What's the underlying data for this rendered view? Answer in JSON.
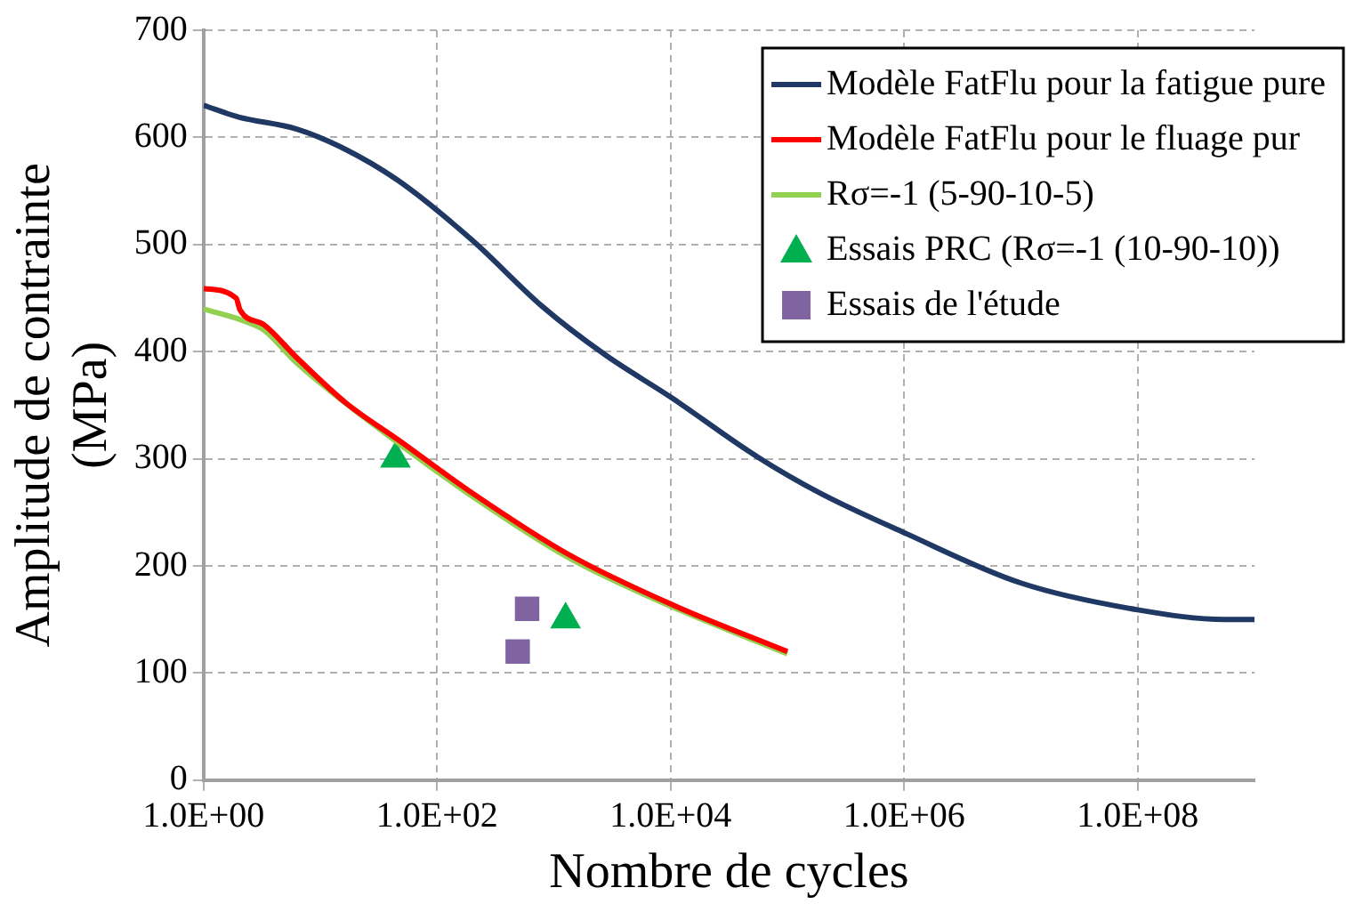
{
  "chart_data": {
    "type": "line",
    "xlabel": "Nombre de cycles",
    "ylabel": "Amplitude de contrainte\n(MPa)",
    "log": "x",
    "grid": true,
    "legend": "top right",
    "xlim": [
      1,
      1000000000
    ],
    "xticks": [
      {
        "value": 1,
        "label": "1.0E+00"
      },
      {
        "value": 100,
        "label": "1.0E+02"
      },
      {
        "value": 10000,
        "label": "1.0E+04"
      },
      {
        "value": 1000000,
        "label": "1.0E+06"
      },
      {
        "value": 100000000,
        "label": "1.0E+08"
      }
    ],
    "ylim": [
      0,
      700
    ],
    "yticks": [
      0,
      100,
      200,
      300,
      400,
      500,
      600,
      700
    ],
    "series": [
      {
        "name": "Modèle FatFlu pour la fatigue pure",
        "color": "#1f3864",
        "marker": "none",
        "x": [
          1,
          2,
          6.2,
          15,
          46,
          200,
          800,
          2750,
          10200,
          55000,
          190000,
          1000000,
          10000000,
          100000000,
          560000000,
          1000000000
        ],
        "values": [
          630,
          619,
          608,
          591,
          560,
          504,
          442,
          397,
          357,
          302,
          268,
          231,
          184,
          159,
          150,
          150
        ]
      },
      {
        "name": "Modèle FatFlu pour le fluage pur",
        "color": "#ff0000",
        "marker": "none",
        "x": [
          1,
          1.9,
          2.05,
          3.3,
          6.2,
          16.6,
          46,
          200,
          1320,
          10200,
          100000
        ],
        "values": [
          459,
          450,
          439,
          425,
          395,
          352,
          318,
          268,
          211,
          164,
          120
        ]
      },
      {
        "name": "Rσ=-1 (5-90-10-5)",
        "color": "#92d050",
        "marker": "none",
        "x": [
          1,
          2.3,
          3.3,
          6.2,
          46,
          200,
          1320,
          10200,
          100000
        ],
        "values": [
          440,
          428,
          420,
          390,
          315,
          265,
          208,
          162,
          118
        ]
      },
      {
        "name": "Essais PRC (Rσ=-1 (10-90-10))",
        "type": "scatter",
        "color": "#00b050",
        "marker": "triangle",
        "x": [
          44,
          1260
        ],
        "values": [
          300,
          150
        ]
      },
      {
        "name": "Essais de l'étude",
        "type": "scatter",
        "color": "#8064a2",
        "marker": "square",
        "x": [
          590,
          490
        ],
        "values": [
          160,
          120
        ]
      }
    ]
  }
}
